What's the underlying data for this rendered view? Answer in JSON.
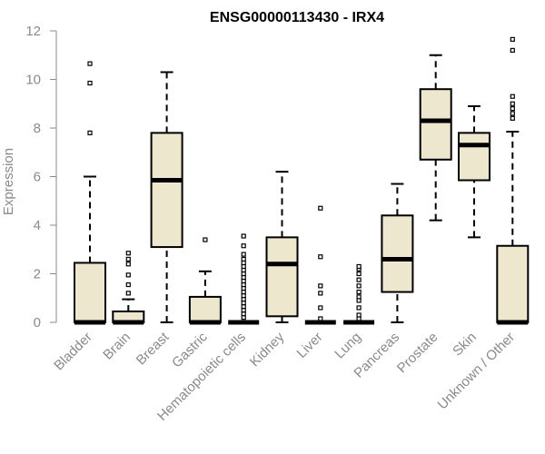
{
  "chart_data": {
    "type": "box",
    "title": "ENSG00000113430 - IRX4",
    "xlabel": "",
    "ylabel": "Expression",
    "ylim": [
      0,
      12
    ],
    "yticks": [
      0,
      2,
      4,
      6,
      8,
      10,
      12
    ],
    "grid": false,
    "legend": "none",
    "box_color": "#ede7cd",
    "categories": [
      "Bladder",
      "Brain",
      "Breast",
      "Gastric",
      "Hematopoietic cells",
      "Kidney",
      "Liver",
      "Lung",
      "Pancreas",
      "Prostate",
      "Skin",
      "Unknown / Other"
    ],
    "boxes": [
      {
        "min": 0,
        "q1": 0,
        "median": 0,
        "q3": 2.45,
        "max": 6.0,
        "outliers": [
          7.8,
          9.85,
          10.65
        ]
      },
      {
        "min": 0,
        "q1": 0,
        "median": 0,
        "q3": 0.45,
        "max": 0.95,
        "outliers": [
          1.2,
          1.55,
          1.95,
          2.4,
          2.6,
          2.85
        ]
      },
      {
        "min": 0,
        "q1": 3.1,
        "median": 5.85,
        "q3": 7.8,
        "max": 10.3,
        "outliers": []
      },
      {
        "min": 0,
        "q1": 0,
        "median": 0,
        "q3": 1.05,
        "max": 2.1,
        "outliers": [
          3.4
        ]
      },
      {
        "min": 0,
        "q1": 0,
        "median": 0,
        "q3": 0,
        "max": 0,
        "outliers": [
          0.2,
          0.35,
          0.5,
          0.65,
          0.8,
          0.95,
          1.1,
          1.25,
          1.4,
          1.55,
          1.7,
          1.85,
          2.0,
          2.15,
          2.3,
          2.45,
          2.6,
          2.8,
          3.15,
          3.55
        ]
      },
      {
        "min": 0,
        "q1": 0.25,
        "median": 2.4,
        "q3": 3.5,
        "max": 6.2,
        "outliers": []
      },
      {
        "min": 0,
        "q1": 0,
        "median": 0,
        "q3": 0,
        "max": 0,
        "outliers": [
          0.15,
          0.6,
          1.2,
          1.5,
          2.7,
          4.7
        ]
      },
      {
        "min": 0,
        "q1": 0,
        "median": 0,
        "q3": 0,
        "max": 0,
        "outliers": [
          0.15,
          0.3,
          0.6,
          0.9,
          1.05,
          1.25,
          1.5,
          1.75,
          2.0,
          2.2,
          2.3
        ]
      },
      {
        "min": 0,
        "q1": 1.25,
        "median": 2.6,
        "q3": 4.4,
        "max": 5.7,
        "outliers": []
      },
      {
        "min": 4.2,
        "q1": 6.7,
        "median": 8.3,
        "q3": 9.6,
        "max": 11.0,
        "outliers": []
      },
      {
        "min": 3.5,
        "q1": 5.85,
        "median": 7.3,
        "q3": 7.8,
        "max": 8.9,
        "outliers": []
      },
      {
        "min": 0,
        "q1": 0,
        "median": 0,
        "q3": 3.15,
        "max": 7.85,
        "outliers": [
          8.4,
          8.6,
          8.8,
          9.0,
          9.3,
          11.2,
          11.65
        ]
      }
    ]
  }
}
